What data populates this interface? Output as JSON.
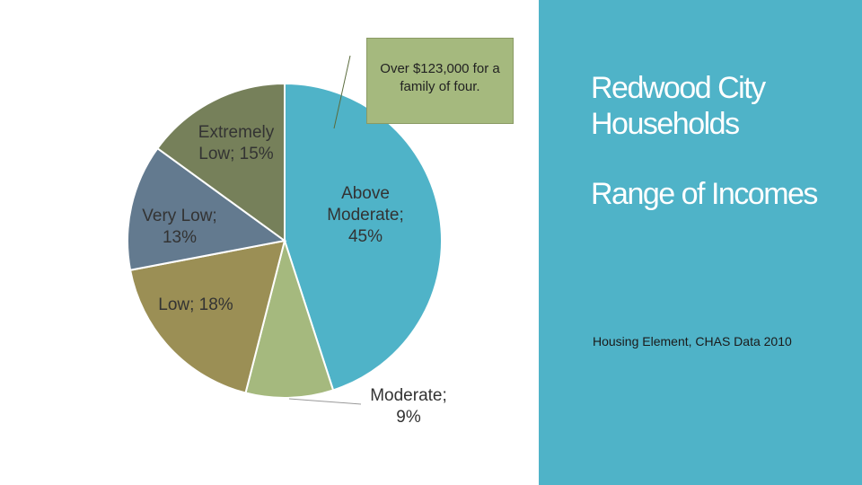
{
  "chart_data": {
    "type": "pie",
    "values": [
      45,
      9,
      18,
      13,
      15
    ],
    "value_labels": [
      "Above Moderate; 45%",
      "Moderate; 9%",
      "Low; 18%",
      "Very Low; 13%",
      "Extremely Low; 15%"
    ],
    "colors": [
      "#4fb3c8",
      "#a5b97e",
      "#9b8f55",
      "#637a8f",
      "#76805a"
    ],
    "annotation": "Over $123,000 for a family of four."
  },
  "title": "Redwood City Households",
  "subtitle": "Range of Incomes",
  "source": "Housing Element, CHAS Data 2010"
}
